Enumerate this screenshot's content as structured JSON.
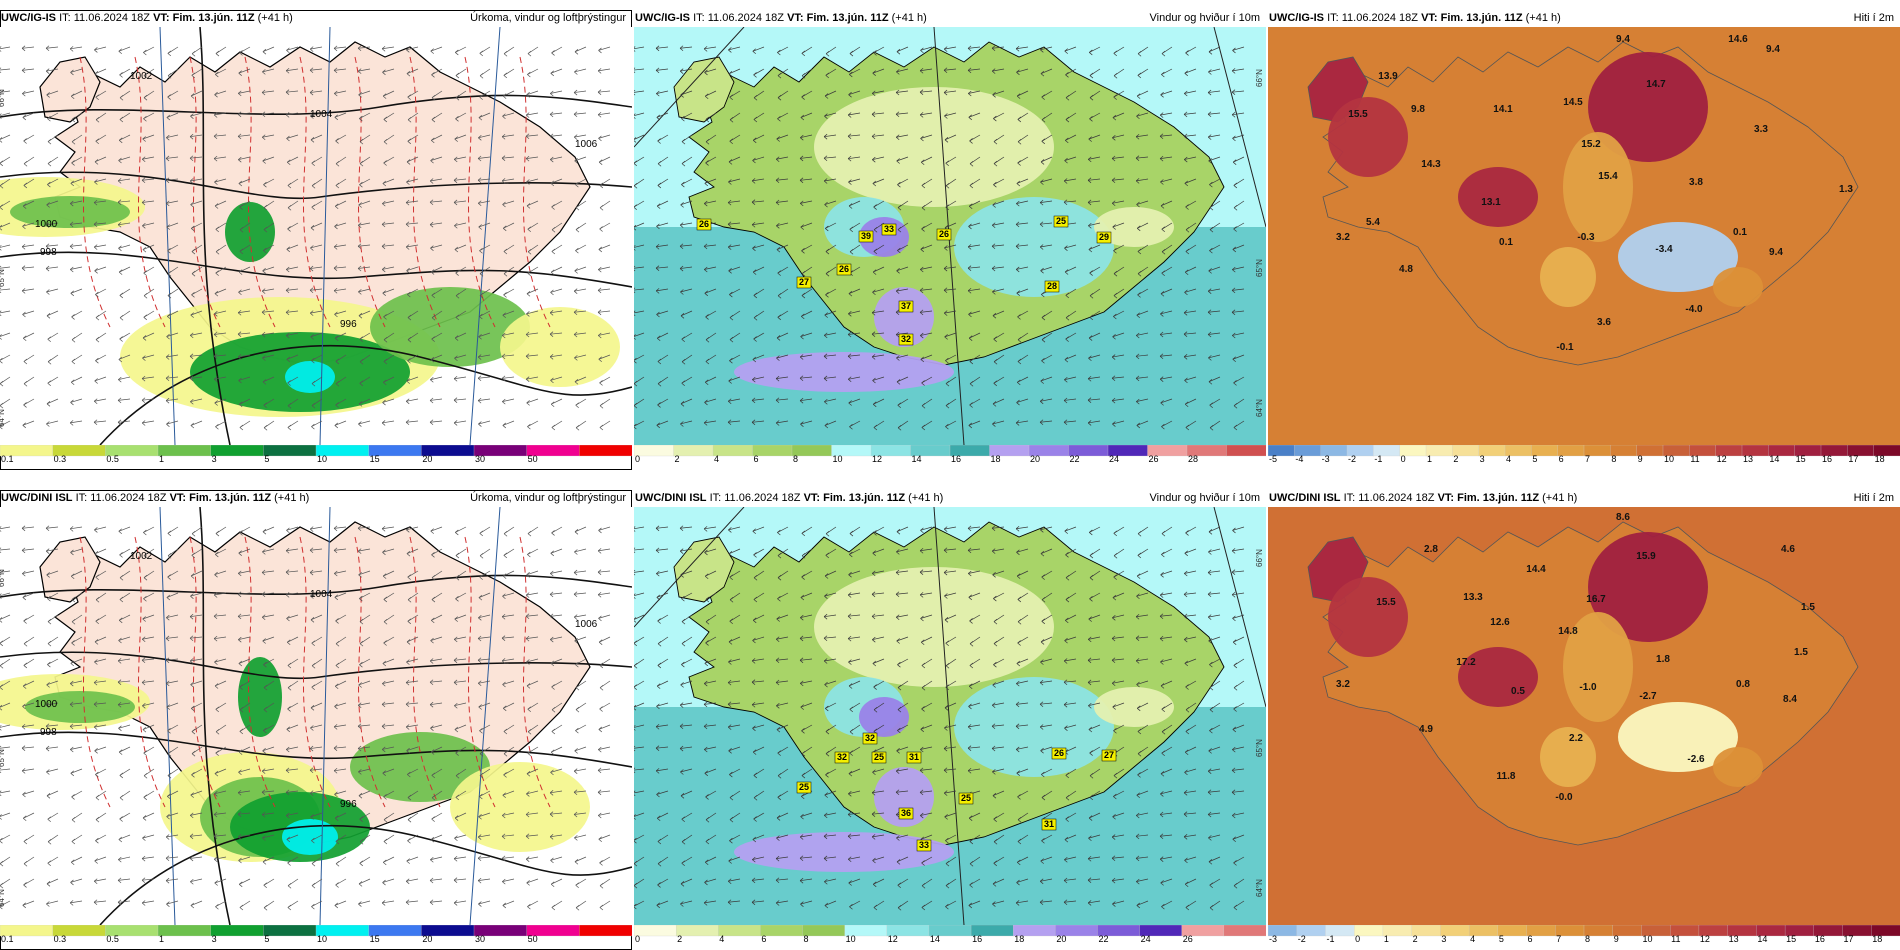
{
  "panels": [
    {
      "model": "UWC/IG-IS",
      "it_label": "IT:",
      "it_value": "11.06.2024 18Z",
      "vt_label": "VT:",
      "vt_value": "Fim. 13.jún. 11Z",
      "lead": "(+41 h)",
      "right_title": "Úrkoma, vindur og loftþrýstingur",
      "type": "precip",
      "colorbar": {
        "ticks": [
          "0.1",
          "0.3",
          "0.5",
          "1",
          "3",
          "5",
          "10",
          "15",
          "20",
          "30",
          "50"
        ],
        "colors": [
          "#f4f68c",
          "#c8d838",
          "#a8e070",
          "#6cc04c",
          "#10a030",
          "#0c7040",
          "#00f0f0",
          "#3c78f0",
          "#0c0c90",
          "#780078",
          "#f00090",
          "#f00000"
        ]
      },
      "pressure_labels": [
        "1000",
        "1002",
        "1004",
        "1006",
        "998",
        "996"
      ],
      "lat_labels": [
        "66°N",
        "65°N",
        "64°N"
      ]
    },
    {
      "model": "UWC/IG-IS",
      "it_label": "IT:",
      "it_value": "11.06.2024 18Z",
      "vt_label": "VT:",
      "vt_value": "Fim. 13.jún. 11Z",
      "lead": "(+41 h)",
      "right_title": "Vindur og hviður í 10m",
      "type": "wind",
      "colorbar": {
        "ticks": [
          "0",
          "2",
          "4",
          "6",
          "8",
          "10",
          "12",
          "14",
          "16",
          "18",
          "20",
          "22",
          "24",
          "26",
          "28"
        ],
        "colors": [
          "#fbfbe0",
          "#e4f0b0",
          "#c8e488",
          "#a8d468",
          "#94c858",
          "#b4f8f8",
          "#8ce4e4",
          "#68cccc",
          "#3caaaa",
          "#b4a0f0",
          "#9a82e8",
          "#7c5cd8",
          "#5028b8",
          "#f0a0a0",
          "#e07878",
          "#d05050"
        ]
      },
      "gust_labels": [
        "26",
        "33",
        "39",
        "26",
        "26",
        "27",
        "25",
        "29",
        "37",
        "28",
        "32"
      ],
      "lat_labels": [
        "66°N",
        "65°N",
        "64°N"
      ]
    },
    {
      "model": "UWC/IG-IS",
      "it_label": "IT:",
      "it_value": "11.06.2024 18Z",
      "vt_label": "VT:",
      "vt_value": "Fim. 13.jún. 11Z",
      "lead": "(+41 h)",
      "right_title": "Hiti í 2m",
      "type": "temp",
      "colorbar": {
        "ticks": [
          "-5",
          "-4",
          "-3",
          "-2",
          "-1",
          "0",
          "1",
          "2",
          "3",
          "4",
          "5",
          "6",
          "7",
          "8",
          "9",
          "10",
          "11",
          "12",
          "13",
          "14",
          "15",
          "16",
          "17",
          "18"
        ],
        "colors": [
          "#4a80c8",
          "#6a9cd8",
          "#8cb8e4",
          "#b0d0f0",
          "#d4e8f4",
          "#fbf7c0",
          "#f8ecb0",
          "#f6e098",
          "#f2d078",
          "#ecc064",
          "#e8b050",
          "#e2a044",
          "#dc9038",
          "#d68034",
          "#d07034",
          "#c86038",
          "#c4503c",
          "#bc4040",
          "#b43440",
          "#aa2840",
          "#a02040",
          "#941838",
          "#881030",
          "#7c0828"
        ]
      },
      "temp_labels": [
        "13.9",
        "9.4",
        "14.6",
        "9.4",
        "15.5",
        "9.8",
        "14.1",
        "14.5",
        "14.7",
        "3.3",
        "14.3",
        "15.2",
        "15.4",
        "3.8",
        "1.3",
        "13.1",
        "3.2",
        "5.4",
        "0.1",
        "-0.3",
        "-3.4",
        "0.1",
        "9.4",
        "4.8",
        "-4.0",
        "3.6",
        "-0.1"
      ]
    },
    {
      "model": "UWC/DINI ISL",
      "it_label": "IT:",
      "it_value": "11.06.2024 18Z",
      "vt_label": "VT:",
      "vt_value": "Fim. 13.jún. 11Z",
      "lead": "(+41 h)",
      "right_title": "Úrkoma, vindur og loftþrýstingur",
      "type": "precip",
      "colorbar": {
        "ticks": [
          "0.1",
          "0.3",
          "0.5",
          "1",
          "3",
          "5",
          "10",
          "15",
          "20",
          "30",
          "50"
        ],
        "colors": [
          "#f4f68c",
          "#c8d838",
          "#a8e070",
          "#6cc04c",
          "#10a030",
          "#0c7040",
          "#00f0f0",
          "#3c78f0",
          "#0c0c90",
          "#780078",
          "#f00090",
          "#f00000"
        ]
      },
      "pressure_labels": [
        "1000",
        "1002",
        "1004",
        "1006",
        "998",
        "996"
      ],
      "lat_labels": [
        "66°N",
        "65°N",
        "64°N"
      ]
    },
    {
      "model": "UWC/DINI ISL",
      "it_label": "IT:",
      "it_value": "11.06.2024 18Z",
      "vt_label": "VT:",
      "vt_value": "Fim. 13.jún. 11Z",
      "lead": "(+41 h)",
      "right_title": "Vindur og hviður í 10m",
      "type": "wind",
      "colorbar": {
        "ticks": [
          "0",
          "2",
          "4",
          "6",
          "8",
          "10",
          "12",
          "14",
          "16",
          "18",
          "20",
          "22",
          "24",
          "26"
        ],
        "colors": [
          "#fbfbe0",
          "#e4f0b0",
          "#c8e488",
          "#a8d468",
          "#94c858",
          "#b4f8f8",
          "#8ce4e4",
          "#68cccc",
          "#3caaaa",
          "#b4a0f0",
          "#9a82e8",
          "#7c5cd8",
          "#5028b8",
          "#f0a0a0",
          "#e07878"
        ]
      },
      "gust_labels": [
        "32",
        "32",
        "25",
        "31",
        "26",
        "27",
        "25",
        "25",
        "36",
        "31",
        "33"
      ],
      "lat_labels": [
        "66°N",
        "65°N",
        "64°N"
      ]
    },
    {
      "model": "UWC/DINI ISL",
      "it_label": "IT:",
      "it_value": "11.06.2024 18Z",
      "vt_label": "VT:",
      "vt_value": "Fim. 13.jún. 11Z",
      "lead": "(+41 h)",
      "right_title": "Hiti í 2m",
      "type": "temp",
      "colorbar": {
        "ticks": [
          "-3",
          "-2",
          "-1",
          "0",
          "1",
          "2",
          "3",
          "4",
          "5",
          "6",
          "7",
          "8",
          "9",
          "10",
          "11",
          "12",
          "13",
          "14",
          "15",
          "16",
          "17",
          "18"
        ],
        "colors": [
          "#8cb8e4",
          "#b0d0f0",
          "#d4e8f4",
          "#fbf7c0",
          "#f8ecb0",
          "#f6e098",
          "#f2d078",
          "#ecc064",
          "#e8b050",
          "#e2a044",
          "#dc9038",
          "#d68034",
          "#d07034",
          "#c86038",
          "#c4503c",
          "#bc4040",
          "#b43440",
          "#aa2840",
          "#a02040",
          "#941838",
          "#881030",
          "#7c0828"
        ]
      },
      "temp_labels": [
        "8.6",
        "2.8",
        "4.6",
        "15.5",
        "13.3",
        "14.4",
        "15.9",
        "16.7",
        "12.6",
        "14.8",
        "1.5",
        "17.2",
        "1.8",
        "1.5",
        "3.2",
        "0.5",
        "-1.0",
        "-2.7",
        "0.8",
        "8.4",
        "4.9",
        "2.2",
        "-2.6",
        "11.8",
        "-0.0"
      ]
    }
  ]
}
